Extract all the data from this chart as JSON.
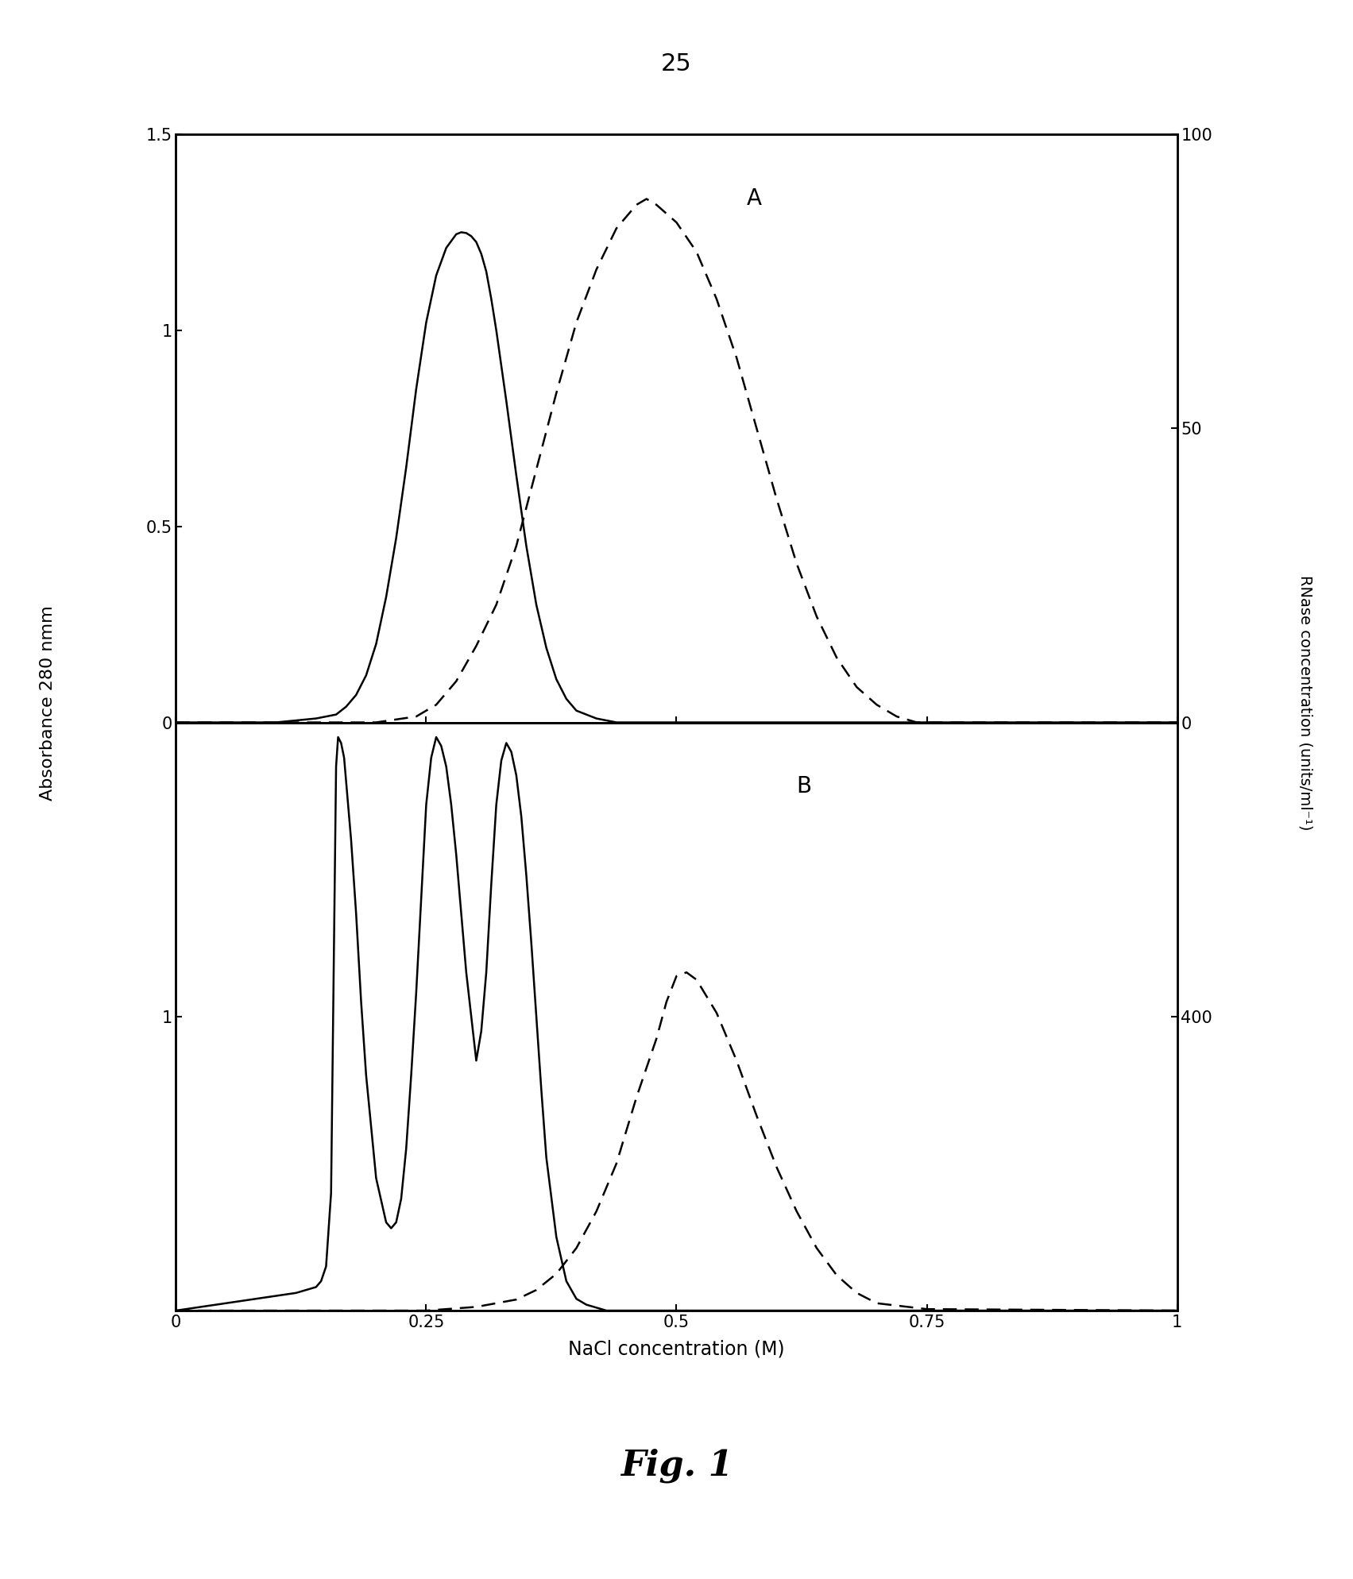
{
  "page_number": "25",
  "fig_label": "Fig. 1",
  "xlabel": "NaCl concentration (M)",
  "ylabel_left": "Absorbance 280 nmm",
  "ylabel_right": "RNase concentration (units/ml⁻¹)",
  "panel_A_label": "A",
  "panel_B_label": "B",
  "xlim": [
    0,
    1
  ],
  "xticks": [
    0,
    0.25,
    0.5,
    0.75,
    1
  ],
  "xtick_labels": [
    "0",
    "0.25",
    "0.5",
    "0.75",
    "1"
  ],
  "panel_A": {
    "ylim_left": [
      0,
      1.5
    ],
    "yticks_left": [
      0,
      0.5,
      1,
      1.5
    ],
    "ytick_labels_left": [
      "0",
      "0.5",
      "1",
      "1.5"
    ],
    "ylim_right": [
      0,
      100
    ],
    "yticks_right": [
      0,
      50,
      100
    ],
    "ytick_labels_right": [
      "0",
      "50",
      "100"
    ],
    "solid_x": [
      0.0,
      0.1,
      0.14,
      0.16,
      0.17,
      0.18,
      0.19,
      0.2,
      0.21,
      0.22,
      0.23,
      0.24,
      0.25,
      0.26,
      0.27,
      0.28,
      0.285,
      0.29,
      0.295,
      0.3,
      0.305,
      0.31,
      0.315,
      0.32,
      0.33,
      0.34,
      0.35,
      0.36,
      0.37,
      0.38,
      0.39,
      0.4,
      0.42,
      0.44,
      0.46,
      0.48,
      0.5,
      0.52,
      0.55,
      0.6,
      0.65,
      0.7,
      1.0
    ],
    "solid_y": [
      0.0,
      0.0,
      0.01,
      0.02,
      0.04,
      0.07,
      0.12,
      0.2,
      0.32,
      0.47,
      0.65,
      0.85,
      1.02,
      1.14,
      1.21,
      1.245,
      1.25,
      1.248,
      1.24,
      1.225,
      1.195,
      1.15,
      1.08,
      1.0,
      0.82,
      0.63,
      0.45,
      0.3,
      0.19,
      0.11,
      0.06,
      0.03,
      0.01,
      0.0,
      0.0,
      0.0,
      0.0,
      0.0,
      0.0,
      0.0,
      0.0,
      0.0,
      0.0
    ],
    "dashed_x": [
      0.0,
      0.15,
      0.2,
      0.24,
      0.26,
      0.28,
      0.3,
      0.32,
      0.34,
      0.36,
      0.38,
      0.4,
      0.42,
      0.44,
      0.46,
      0.47,
      0.48,
      0.5,
      0.52,
      0.54,
      0.56,
      0.58,
      0.6,
      0.62,
      0.64,
      0.66,
      0.68,
      0.7,
      0.72,
      0.74,
      0.76,
      0.8,
      1.0
    ],
    "dashed_y_right": [
      0,
      0,
      0,
      1,
      3,
      7,
      13,
      20,
      30,
      43,
      56,
      68,
      77,
      84,
      88,
      89,
      88,
      85,
      80,
      72,
      62,
      50,
      38,
      27,
      18,
      11,
      6,
      3,
      1,
      0,
      0,
      0,
      0
    ]
  },
  "panel_B": {
    "ylim_left": [
      0,
      2.0
    ],
    "ytick_pos_left": [
      1.0
    ],
    "ytick_labels_left": [
      "1"
    ],
    "ylim_right": [
      0,
      800
    ],
    "ytick_pos_right": [
      400
    ],
    "ytick_labels_right": [
      "400"
    ],
    "solid_x": [
      0.0,
      0.1,
      0.12,
      0.13,
      0.14,
      0.145,
      0.15,
      0.155,
      0.16,
      0.162,
      0.165,
      0.168,
      0.17,
      0.175,
      0.18,
      0.185,
      0.19,
      0.2,
      0.21,
      0.215,
      0.22,
      0.225,
      0.23,
      0.235,
      0.24,
      0.245,
      0.25,
      0.255,
      0.26,
      0.265,
      0.27,
      0.275,
      0.28,
      0.285,
      0.29,
      0.3,
      0.305,
      0.31,
      0.315,
      0.32,
      0.325,
      0.33,
      0.335,
      0.34,
      0.345,
      0.35,
      0.355,
      0.36,
      0.365,
      0.37,
      0.38,
      0.39,
      0.4,
      0.41,
      0.42,
      0.43,
      0.44,
      0.445,
      0.45,
      0.455,
      0.46,
      0.47,
      0.48,
      0.49,
      0.5,
      0.51,
      0.55,
      0.6,
      1.0
    ],
    "solid_y": [
      0.0,
      0.05,
      0.06,
      0.07,
      0.08,
      0.1,
      0.15,
      0.4,
      1.85,
      1.95,
      1.93,
      1.88,
      1.8,
      1.6,
      1.35,
      1.05,
      0.8,
      0.45,
      0.3,
      0.28,
      0.3,
      0.38,
      0.55,
      0.8,
      1.08,
      1.4,
      1.72,
      1.88,
      1.95,
      1.92,
      1.85,
      1.72,
      1.55,
      1.35,
      1.15,
      0.85,
      0.95,
      1.15,
      1.45,
      1.72,
      1.87,
      1.93,
      1.9,
      1.82,
      1.68,
      1.48,
      1.25,
      1.0,
      0.75,
      0.52,
      0.25,
      0.1,
      0.04,
      0.02,
      0.01,
      0.0,
      0.0,
      0.0,
      0.0,
      0.0,
      0.0,
      0.0,
      0.0,
      0.0,
      0.0,
      0.0,
      0.0,
      0.0,
      0.0
    ],
    "dashed_x": [
      0.0,
      0.25,
      0.3,
      0.34,
      0.36,
      0.38,
      0.4,
      0.42,
      0.44,
      0.46,
      0.48,
      0.49,
      0.5,
      0.51,
      0.52,
      0.54,
      0.56,
      0.58,
      0.6,
      0.62,
      0.64,
      0.66,
      0.68,
      0.7,
      0.75,
      1.0
    ],
    "dashed_y_right": [
      0,
      0,
      5,
      15,
      28,
      50,
      85,
      135,
      200,
      290,
      370,
      420,
      455,
      460,
      450,
      405,
      340,
      265,
      195,
      135,
      85,
      48,
      24,
      10,
      2,
      0
    ]
  },
  "linewidth": 1.8,
  "background_color": "#ffffff",
  "text_color": "#000000"
}
